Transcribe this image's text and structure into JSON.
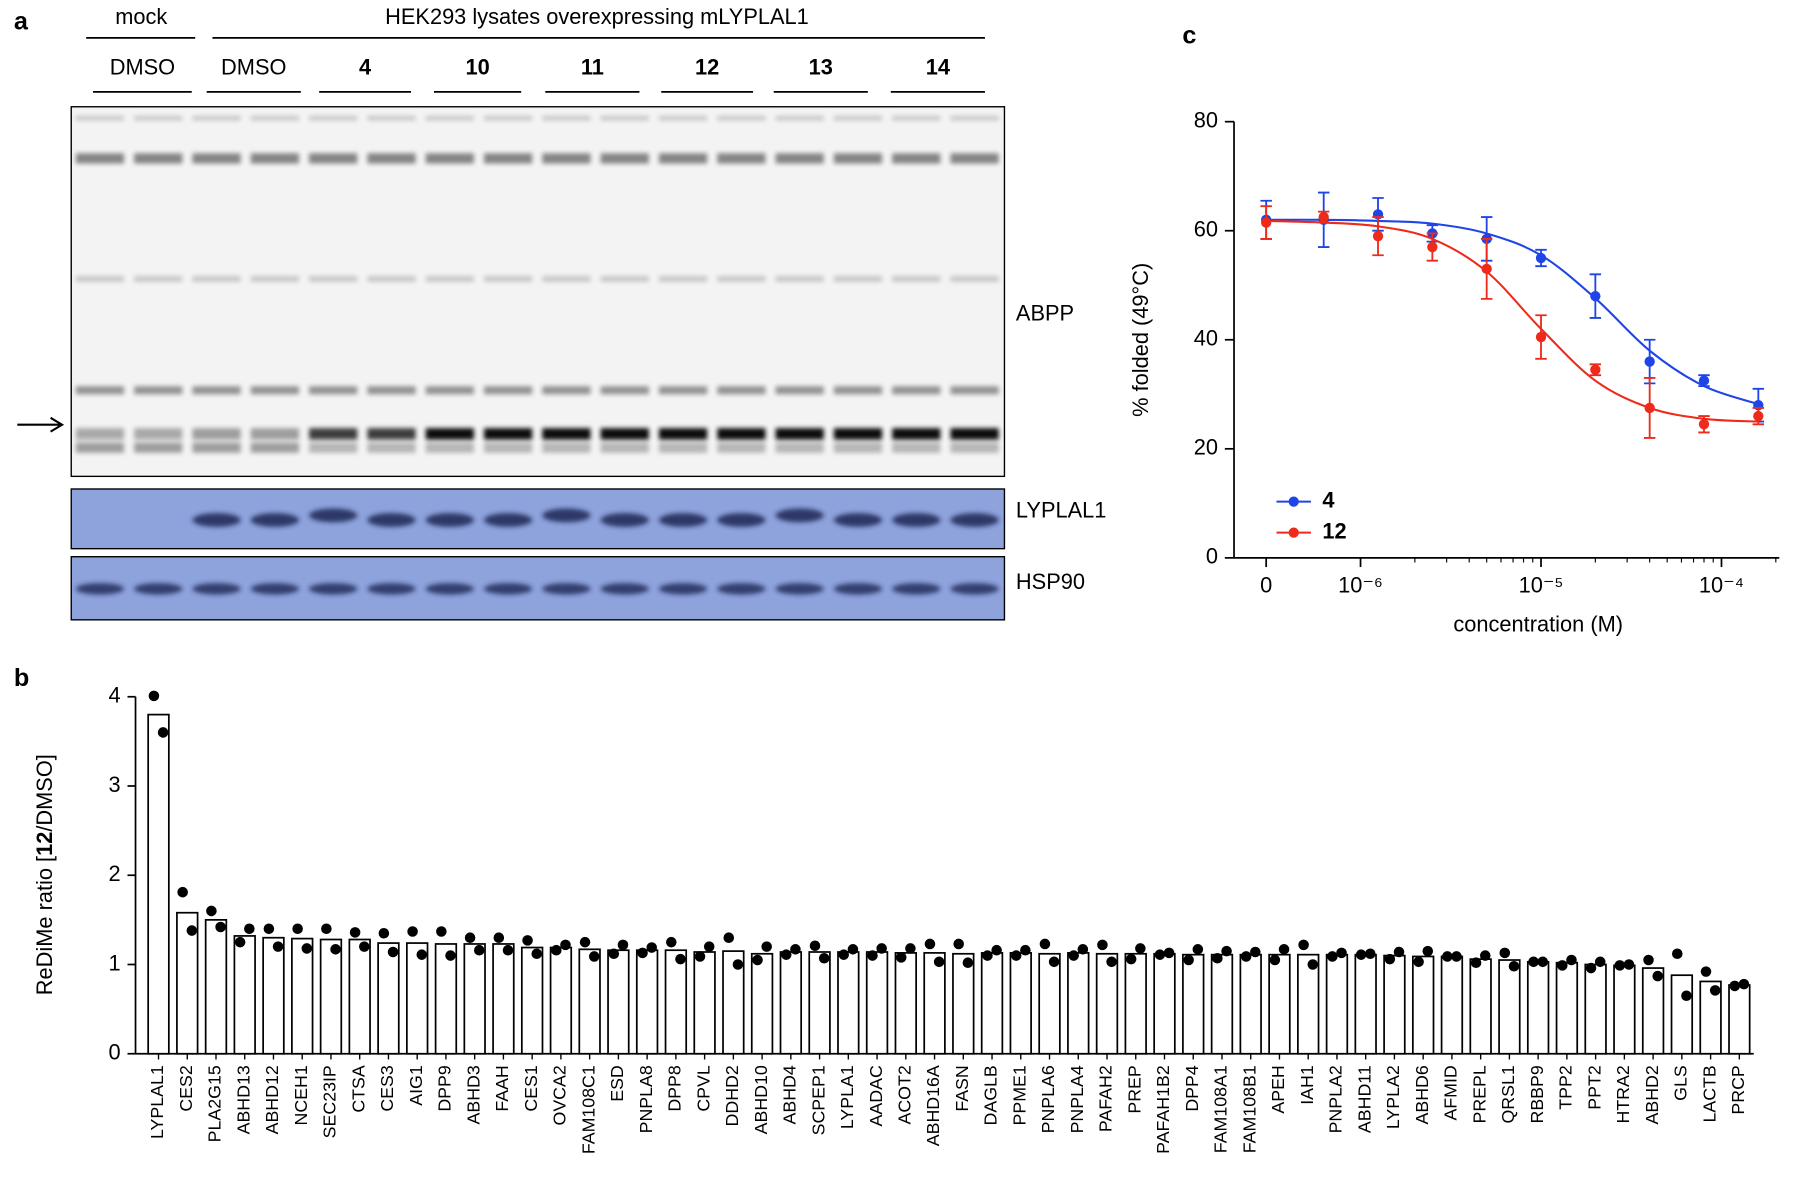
{
  "gel": {
    "panel": "a",
    "mock": "mock",
    "group": "HEK293 lysates overexpressing mLYPLAL1",
    "lanes": [
      "DMSO",
      "DMSO",
      "4",
      "10",
      "11",
      "12",
      "13",
      "14"
    ],
    "rows": [
      "ABPP",
      "LYPLAL1",
      "HSP90"
    ]
  },
  "chart_data": [
    {
      "type": "line",
      "panel": "c",
      "ylabel": "% folded (49°C)",
      "xlabel": "concentration (M)",
      "log_x": true,
      "x": [
        0,
        6.25e-07,
        1.25e-06,
        2.5e-06,
        5e-06,
        1e-05,
        2e-05,
        4e-05,
        8e-05,
        0.00016
      ],
      "xlim": [
        3e-07,
        0.0002
      ],
      "xticks": [
        0,
        {
          "value": 1e-06,
          "label": "10⁻⁶"
        },
        {
          "value": 1e-05,
          "label": "10⁻⁵"
        },
        {
          "value": 0.0001,
          "label": "10⁻⁴"
        }
      ],
      "ylim": [
        0,
        80
      ],
      "yticks": [
        0,
        20,
        40,
        60,
        80
      ],
      "legend": "lower left",
      "series": [
        {
          "name": "4",
          "color": "#1f45e6",
          "values": [
            62,
            62,
            63,
            59.5,
            58.5,
            55,
            48,
            36,
            32.5,
            28
          ],
          "errors": [
            3.5,
            5,
            3,
            1.5,
            4,
            1.5,
            4,
            4,
            1,
            3
          ],
          "fit_values": [
            62,
            62,
            61.8,
            61.3,
            59.5,
            55.5,
            47.6,
            38,
            31.5,
            28.2
          ]
        },
        {
          "name": "12",
          "color": "#ee2a1a",
          "values": [
            61.5,
            62.5,
            59,
            57,
            53,
            40.5,
            34.5,
            27.5,
            24.5,
            26
          ],
          "errors": [
            3,
            1,
            3.5,
            2.5,
            5.5,
            4,
            1,
            5.5,
            1.5,
            1.5
          ],
          "fit_values": [
            61.8,
            61.5,
            60.8,
            58.5,
            52.5,
            42,
            32.5,
            27.5,
            25.5,
            25
          ]
        }
      ]
    },
    {
      "type": "bar",
      "panel": "b",
      "ylabel_parts": [
        "ReDiMe ratio [",
        "12",
        "/DMSO]"
      ],
      "categories": [
        "LYPLAL1",
        "CES2",
        "PLA2G15",
        "ABHD13",
        "ABHD12",
        "NCEH1",
        "SEC23IP",
        "CTSA",
        "CES3",
        "AIG1",
        "DPP9",
        "ABHD3",
        "FAAH",
        "CES1",
        "OVCA2",
        "FAM108C1",
        "ESD",
        "PNPLA8",
        "DPP8",
        "CPVL",
        "DDHD2",
        "ABHD10",
        "ABHD4",
        "SCPEP1",
        "LYPLA1",
        "AADAC",
        "ACOT2",
        "ABHD16A",
        "FASN",
        "DAGLB",
        "PPME1",
        "PNPLA6",
        "PNPLA4",
        "PAFAH2",
        "PREP",
        "PAFAH1B2",
        "DPP4",
        "FAM108A1",
        "FAM108B1",
        "APEH",
        "IAH1",
        "PNPLA2",
        "ABHD11",
        "LYPLA2",
        "ABHD6",
        "AFMID",
        "PREPL",
        "QRSL1",
        "RBBP9",
        "TPP2",
        "PPT2",
        "HTRA2",
        "ABHD2",
        "GLS",
        "LACTB",
        "PRCP"
      ],
      "values": [
        3.8,
        1.58,
        1.5,
        1.32,
        1.3,
        1.29,
        1.28,
        1.28,
        1.24,
        1.24,
        1.23,
        1.23,
        1.23,
        1.19,
        1.19,
        1.17,
        1.16,
        1.16,
        1.16,
        1.14,
        1.15,
        1.12,
        1.14,
        1.14,
        1.14,
        1.14,
        1.13,
        1.13,
        1.12,
        1.13,
        1.13,
        1.12,
        1.13,
        1.12,
        1.12,
        1.12,
        1.11,
        1.11,
        1.11,
        1.11,
        1.11,
        1.11,
        1.11,
        1.1,
        1.09,
        1.09,
        1.06,
        1.05,
        1.03,
        1.02,
        1.0,
        0.99,
        0.96,
        0.88,
        0.81,
        0.77
      ],
      "replicates": [
        [
          4.01,
          3.6
        ],
        [
          1.81,
          1.38
        ],
        [
          1.6,
          1.42
        ],
        [
          1.25,
          1.4
        ],
        [
          1.4,
          1.2
        ],
        [
          1.4,
          1.18
        ],
        [
          1.4,
          1.17
        ],
        [
          1.36,
          1.2
        ],
        [
          1.35,
          1.14
        ],
        [
          1.37,
          1.11
        ],
        [
          1.37,
          1.1
        ],
        [
          1.3,
          1.16
        ],
        [
          1.3,
          1.16
        ],
        [
          1.27,
          1.12
        ],
        [
          1.16,
          1.22
        ],
        [
          1.25,
          1.09
        ],
        [
          1.12,
          1.22
        ],
        [
          1.13,
          1.19
        ],
        [
          1.25,
          1.06
        ],
        [
          1.09,
          1.2
        ],
        [
          1.3,
          1.0
        ],
        [
          1.05,
          1.2
        ],
        [
          1.11,
          1.17
        ],
        [
          1.21,
          1.07
        ],
        [
          1.11,
          1.17
        ],
        [
          1.1,
          1.18
        ],
        [
          1.08,
          1.18
        ],
        [
          1.23,
          1.03
        ],
        [
          1.23,
          1.02
        ],
        [
          1.1,
          1.16
        ],
        [
          1.1,
          1.16
        ],
        [
          1.23,
          1.03
        ],
        [
          1.1,
          1.17
        ],
        [
          1.22,
          1.03
        ],
        [
          1.06,
          1.18
        ],
        [
          1.11,
          1.13
        ],
        [
          1.05,
          1.17
        ],
        [
          1.07,
          1.15
        ],
        [
          1.09,
          1.14
        ],
        [
          1.05,
          1.17
        ],
        [
          1.22,
          1.0
        ],
        [
          1.09,
          1.13
        ],
        [
          1.11,
          1.12
        ],
        [
          1.06,
          1.14
        ],
        [
          1.03,
          1.15
        ],
        [
          1.09,
          1.09
        ],
        [
          1.02,
          1.1
        ],
        [
          1.13,
          0.98
        ],
        [
          1.03,
          1.03
        ],
        [
          0.99,
          1.05
        ],
        [
          0.96,
          1.03
        ],
        [
          0.99,
          1.0
        ],
        [
          1.05,
          0.87
        ],
        [
          1.12,
          0.65
        ],
        [
          0.92,
          0.71
        ],
        [
          0.76,
          0.78
        ]
      ],
      "color": "#ffffff",
      "edge_color": "#000000",
      "dot_color": "#000000",
      "highlight_category": "LYPLAL1",
      "highlight_color": "#e8281e",
      "ylim": [
        0,
        4
      ],
      "yticks": [
        0,
        1,
        2,
        3,
        4
      ]
    }
  ]
}
